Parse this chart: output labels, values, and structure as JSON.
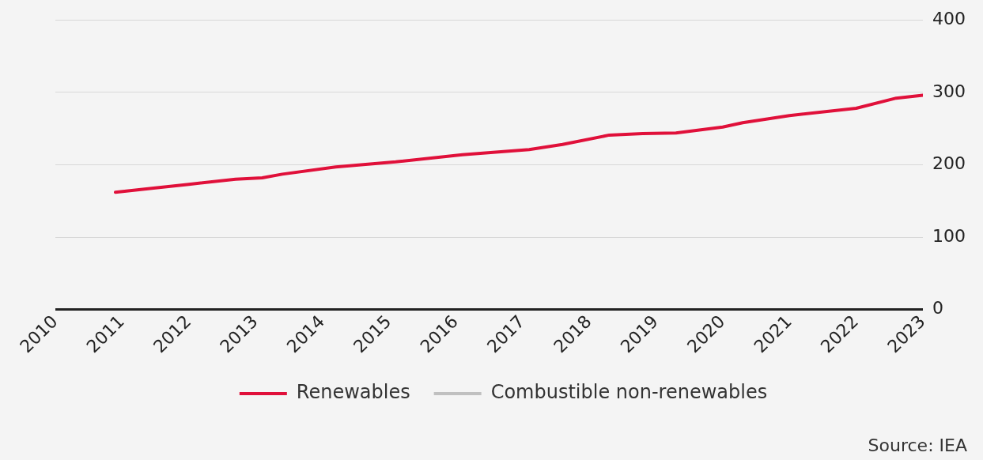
{
  "chart_data": {
    "type": "line",
    "series": [
      {
        "name": "Renewables",
        "color": "#e0103a",
        "x": [
          2010.9,
          2011.5,
          2012.0,
          2012.7,
          2013.1,
          2013.4,
          2014.2,
          2015.1,
          2016.1,
          2017.1,
          2017.6,
          2018.3,
          2018.8,
          2019.3,
          2020.0,
          2020.3,
          2021.0,
          2022.0,
          2022.6,
          2023.0
        ],
        "values": [
          162,
          168,
          173,
          180,
          182,
          187,
          197,
          204,
          214,
          221,
          228,
          241,
          243,
          244,
          252,
          258,
          268,
          278,
          292,
          296
        ]
      },
      {
        "name": "Combustible non-renewables",
        "color": "#c0c0c0"
      }
    ],
    "xlim": [
      2010,
      2023
    ],
    "xticks": [
      2010,
      2011,
      2012,
      2013,
      2014,
      2015,
      2016,
      2017,
      2018,
      2019,
      2020,
      2021,
      2022,
      2023
    ],
    "ylim": [
      0,
      400
    ],
    "yticks": [
      0,
      100,
      200,
      300,
      400
    ],
    "grid": "y",
    "legend": "bottom",
    "marker": "none",
    "line_style": "solid",
    "annotations": [
      "Source: IEA"
    ]
  }
}
